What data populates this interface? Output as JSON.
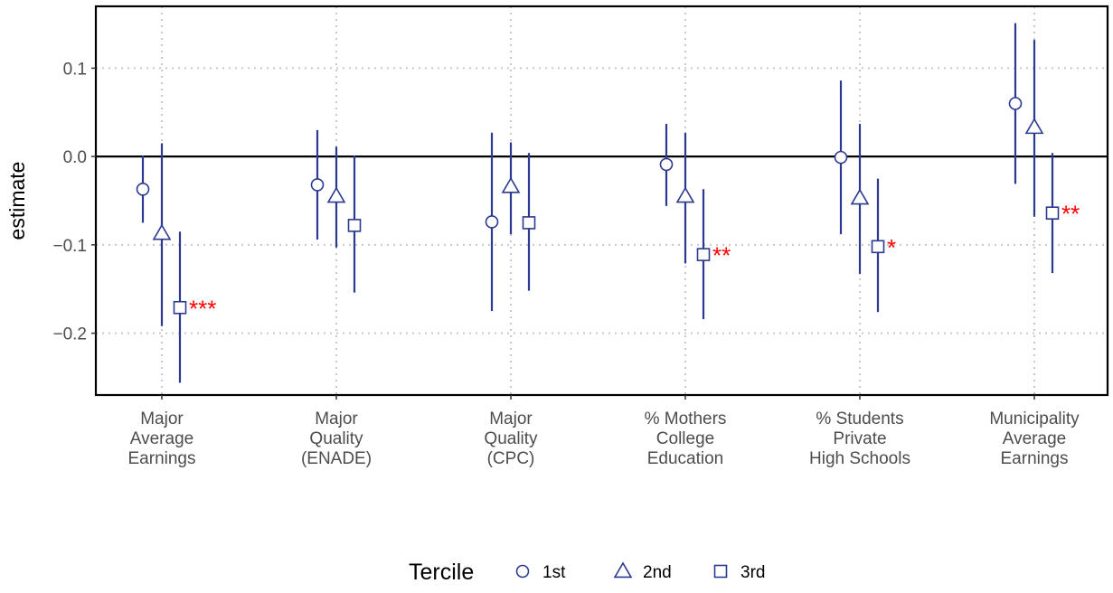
{
  "chart_data": {
    "type": "scatter",
    "ylabel": "estimate",
    "xlabel": "",
    "ylim": [
      -0.27,
      0.17
    ],
    "yticks": [
      0.1,
      0.0,
      -0.1,
      -0.2
    ],
    "ytick_labels": [
      "0.1",
      "0.0",
      "−0.1",
      "−0.2"
    ],
    "categories": [
      [
        "Major",
        "Average",
        "Earnings"
      ],
      [
        "Major",
        "Quality",
        "(ENADE)"
      ],
      [
        "Major",
        "Quality",
        "(CPC)"
      ],
      [
        "% Mothers",
        "College",
        "Education"
      ],
      [
        "% Students",
        "Private",
        "High Schools"
      ],
      [
        "Municipality",
        "Average",
        "Earnings"
      ]
    ],
    "grid": true,
    "reference_line": 0.0,
    "legend": {
      "title": "Tercile",
      "position": "bottom",
      "entries": [
        {
          "label": "1st",
          "shape": "circle"
        },
        {
          "label": "2nd",
          "shape": "triangle"
        },
        {
          "label": "3rd",
          "shape": "square"
        }
      ]
    },
    "series": [
      {
        "name": "1st",
        "shape": "circle",
        "estimate": [
          -0.037,
          -0.032,
          -0.074,
          -0.009,
          -0.001,
          0.06
        ],
        "ci_low": [
          -0.075,
          -0.094,
          -0.175,
          -0.056,
          -0.088,
          -0.031
        ],
        "ci_high": [
          0.001,
          0.03,
          0.027,
          0.037,
          0.086,
          0.151
        ],
        "stars": [
          "",
          "",
          "",
          "",
          "",
          ""
        ]
      },
      {
        "name": "2nd",
        "shape": "triangle",
        "estimate": [
          -0.087,
          -0.045,
          -0.034,
          -0.045,
          -0.047,
          0.033
        ],
        "ci_low": [
          -0.192,
          -0.103,
          -0.088,
          -0.121,
          -0.133,
          -0.068
        ],
        "ci_high": [
          0.015,
          0.011,
          0.016,
          0.027,
          0.037,
          0.132
        ],
        "stars": [
          "",
          "",
          "",
          "",
          "",
          ""
        ]
      },
      {
        "name": "3rd",
        "shape": "square",
        "estimate": [
          -0.171,
          -0.078,
          -0.075,
          -0.111,
          -0.102,
          -0.064
        ],
        "ci_low": [
          -0.256,
          -0.154,
          -0.152,
          -0.184,
          -0.176,
          -0.132
        ],
        "ci_high": [
          -0.085,
          0.001,
          0.004,
          -0.037,
          -0.025,
          0.004
        ],
        "stars": [
          "***",
          "",
          "",
          "**",
          "*",
          "**"
        ]
      }
    ],
    "colors": {
      "series": "#2b3990",
      "stars": "#ff0000",
      "grid": "#c8c8c8",
      "frame": "#000000",
      "text": "#4d4d4d"
    }
  }
}
